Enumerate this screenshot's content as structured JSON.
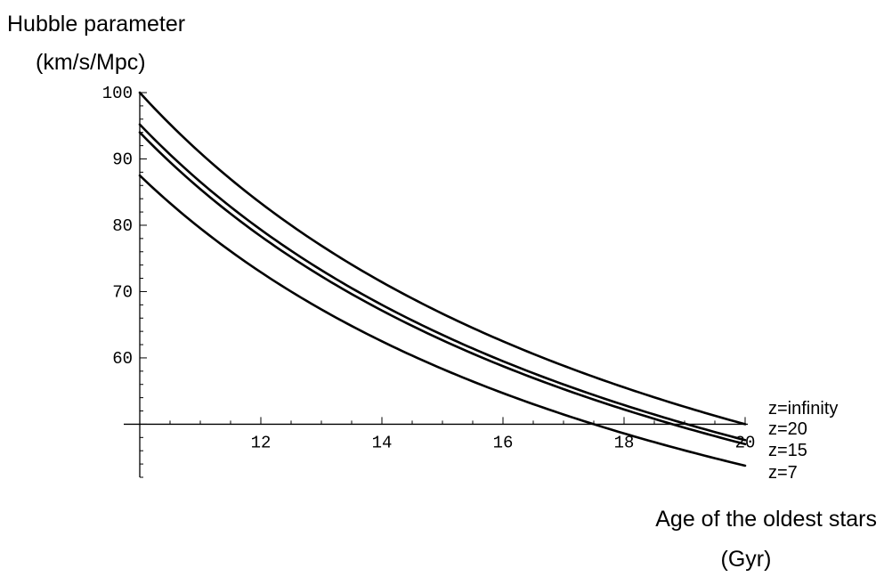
{
  "chart_data": {
    "type": "line",
    "ylabel_line1": "Hubble parameter",
    "ylabel_line2": "(km/s/Mpc)",
    "xlabel_line1": "Age of the oldest stars",
    "xlabel_line2": "(Gyr)",
    "xlim": [
      10,
      20
    ],
    "ylim": [
      42,
      100
    ],
    "x_axis_crossing_y": 50,
    "x_ticks": [
      12,
      14,
      16,
      18,
      20
    ],
    "y_ticks": [
      60,
      70,
      80,
      90,
      100
    ],
    "x_tick_labels": [
      "12",
      "14",
      "16",
      "18",
      "20"
    ],
    "y_tick_labels": [
      "60",
      "70",
      "80",
      "90",
      "100"
    ],
    "grid": false,
    "legend": "none",
    "series": [
      {
        "name": "z=infinity",
        "x": [
          10,
          11,
          12,
          13,
          14,
          15,
          16,
          17,
          18,
          19,
          20
        ],
        "values": [
          100,
          90.9,
          83.3,
          76.9,
          71.4,
          66.7,
          62.5,
          58.8,
          55.6,
          52.6,
          50.0
        ]
      },
      {
        "name": "z=20",
        "x": [
          10,
          11,
          12,
          13,
          14,
          15,
          16,
          17,
          18,
          19,
          20
        ],
        "values": [
          95.2,
          86.6,
          79.4,
          73.3,
          68.0,
          63.5,
          59.5,
          56.0,
          52.9,
          50.1,
          47.6
        ]
      },
      {
        "name": "z=15",
        "x": [
          10,
          11,
          12,
          13,
          14,
          15,
          16,
          17,
          18,
          19,
          20
        ],
        "values": [
          94.0,
          85.5,
          78.3,
          72.3,
          67.1,
          62.7,
          58.8,
          55.3,
          52.2,
          49.5,
          47.0
        ]
      },
      {
        "name": "z=7",
        "x": [
          10,
          11,
          12,
          13,
          14,
          15,
          16,
          17,
          18,
          19,
          20
        ],
        "values": [
          87.5,
          79.5,
          72.9,
          67.3,
          62.5,
          58.3,
          54.7,
          51.5,
          48.6,
          46.1,
          43.8
        ]
      }
    ]
  }
}
